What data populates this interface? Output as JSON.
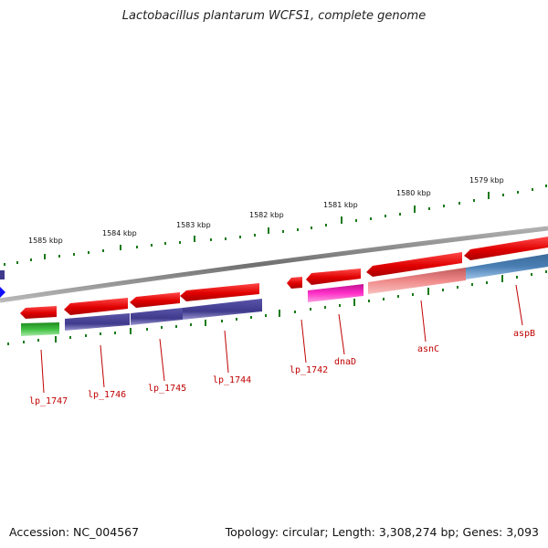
{
  "title": "Lactobacillus plantarum WCFS1, complete genome",
  "footer": {
    "accession": "Accession: NC_004567",
    "summary": "Topology: circular; Length: 3,308,274 bp; Genes: 3,093"
  },
  "scale_labels": [
    "1585 kbp",
    "1584 kbp",
    "1583 kbp",
    "1582 kbp",
    "1581 kbp",
    "1580 kbp",
    "1579 kbp"
  ],
  "gene_labels": [
    "lp_1747",
    "lp_1746",
    "lp_1745",
    "lp_1744",
    "lp_1742",
    "dnaD",
    "asnC",
    "aspB"
  ],
  "colors": {
    "backbone": "#808080",
    "tick": "#1a7a1a",
    "label": "#c00000",
    "cds_forward": "#e00000",
    "cds_reverse_dark": "#3f3a8c",
    "cds_salmon": "#f08a8a",
    "cds_magenta": "#e020c0",
    "cds_green": "#30b030",
    "cds_steel": "#4a7fb5",
    "marker": "#1010ff"
  }
}
